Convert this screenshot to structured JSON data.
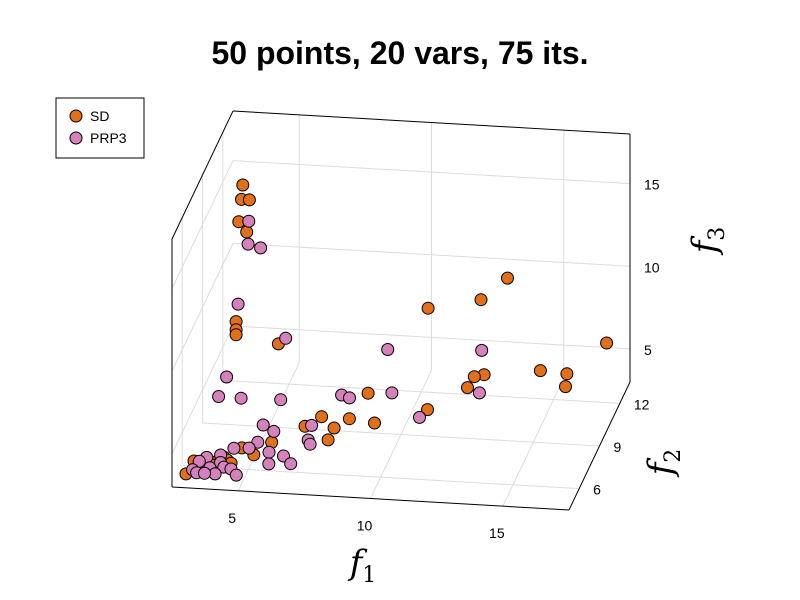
{
  "chart_data": {
    "type": "scatter",
    "title": "50 points, 20 vars, 75 its.",
    "axes": {
      "x": {
        "label": "f",
        "sub": "1",
        "range": [
          2.5,
          17.5
        ],
        "ticks": [
          5,
          10,
          15
        ]
      },
      "y": {
        "label": "f",
        "sub": "2",
        "range": [
          4.5,
          13.5
        ],
        "ticks": [
          6,
          9,
          12
        ]
      },
      "z": {
        "label": "f",
        "sub": "3",
        "range": [
          3,
          18
        ],
        "ticks": [
          5,
          10,
          15
        ]
      }
    },
    "grid": true,
    "legend": {
      "placement": "top-left",
      "entries": [
        {
          "name": "SD",
          "color": "#e26f1a"
        },
        {
          "name": "PRP3",
          "color": "#d581bb"
        }
      ]
    },
    "series": [
      {
        "name": "SD",
        "color": "#e26f1a",
        "points": [
          [
            3.0,
            13.0,
            14.0
          ],
          [
            3.0,
            12.8,
            13.3
          ],
          [
            3.3,
            12.8,
            13.3
          ],
          [
            3.0,
            12.4,
            12.3
          ],
          [
            3.3,
            12.4,
            11.7
          ],
          [
            3.0,
            12.0,
            6.6
          ],
          [
            3.0,
            12.0,
            6.1
          ],
          [
            3.0,
            12.0,
            5.8
          ],
          [
            4.6,
            12.0,
            5.4
          ],
          [
            13.0,
            13.0,
            9.3
          ],
          [
            12.0,
            13.0,
            7.9
          ],
          [
            10.0,
            13.0,
            7.2
          ],
          [
            17.0,
            12.0,
            6.6
          ],
          [
            14.5,
            12.0,
            4.7
          ],
          [
            15.5,
            12.0,
            4.6
          ],
          [
            15.5,
            11.8,
            4.0
          ],
          [
            12.5,
            11.5,
            4.7
          ],
          [
            12.0,
            12.0,
            4.1
          ],
          [
            12.0,
            11.0,
            4.3
          ],
          [
            8.5,
            10.0,
            4.5
          ],
          [
            11.0,
            9.0,
            4.6
          ],
          [
            9.0,
            9.0,
            3.6
          ],
          [
            8.0,
            9.2,
            3.6
          ],
          [
            7.6,
            8.5,
            3.6
          ],
          [
            7.0,
            9.0,
            3.8
          ],
          [
            6.5,
            8.5,
            3.6
          ],
          [
            7.5,
            8.0,
            3.3
          ],
          [
            5.5,
            7.5,
            3.4
          ],
          [
            4.5,
            7.0,
            3.4
          ],
          [
            5.0,
            6.8,
            3.2
          ],
          [
            4.0,
            6.3,
            3.4
          ],
          [
            3.8,
            6.1,
            3.3
          ],
          [
            4.2,
            6.0,
            3.5
          ],
          [
            3.0,
            5.8,
            3.5
          ],
          [
            3.4,
            5.7,
            3.4
          ],
          [
            3.8,
            5.6,
            3.5
          ],
          [
            4.4,
            5.8,
            3.5
          ],
          [
            3.2,
            5.3,
            3.5
          ],
          [
            2.9,
            5.0,
            3.4
          ]
        ]
      },
      {
        "name": "PRP3",
        "color": "#d581bb",
        "points": [
          [
            3.3,
            12.7,
            12.1
          ],
          [
            3.3,
            12.6,
            10.8
          ],
          [
            3.8,
            12.5,
            10.7
          ],
          [
            3.0,
            12.3,
            7.4
          ],
          [
            4.8,
            12.3,
            5.5
          ],
          [
            8.6,
            12.5,
            5.0
          ],
          [
            12.1,
            12.7,
            5.1
          ],
          [
            2.9,
            11.0,
            4.1
          ],
          [
            2.8,
            10.2,
            3.6
          ],
          [
            3.6,
            10.4,
            3.4
          ],
          [
            5.2,
            10.0,
            3.8
          ],
          [
            7.5,
            10.0,
            4.3
          ],
          [
            7.9,
            9.6,
            4.5
          ],
          [
            9.4,
            10.0,
            4.6
          ],
          [
            12.5,
            10.8,
            4.2
          ],
          [
            10.7,
            9.0,
            4.1
          ],
          [
            6.7,
            8.7,
            3.5
          ],
          [
            5.0,
            8.2,
            3.8
          ],
          [
            5.5,
            7.8,
            3.8
          ],
          [
            6.8,
            7.8,
            3.4
          ],
          [
            7.0,
            7.3,
            3.6
          ],
          [
            5.1,
            7.0,
            3.8
          ],
          [
            5.6,
            6.7,
            3.5
          ],
          [
            4.8,
            6.9,
            3.5
          ],
          [
            4.3,
            6.6,
            3.7
          ],
          [
            6.2,
            6.5,
            3.5
          ],
          [
            3.9,
            6.2,
            3.6
          ],
          [
            6.6,
            6.0,
            3.5
          ],
          [
            5.8,
            5.9,
            3.5
          ],
          [
            3.4,
            6.1,
            3.5
          ],
          [
            3.2,
            5.8,
            3.5
          ],
          [
            4.0,
            5.8,
            3.5
          ],
          [
            3.7,
            5.4,
            3.5
          ],
          [
            4.2,
            5.5,
            3.5
          ],
          [
            4.5,
            5.4,
            3.5
          ],
          [
            3.1,
            5.2,
            3.5
          ],
          [
            3.3,
            5.0,
            3.5
          ],
          [
            4.0,
            5.0,
            3.5
          ],
          [
            3.6,
            5.0,
            3.5
          ],
          [
            4.8,
            5.0,
            3.5
          ]
        ]
      }
    ]
  }
}
